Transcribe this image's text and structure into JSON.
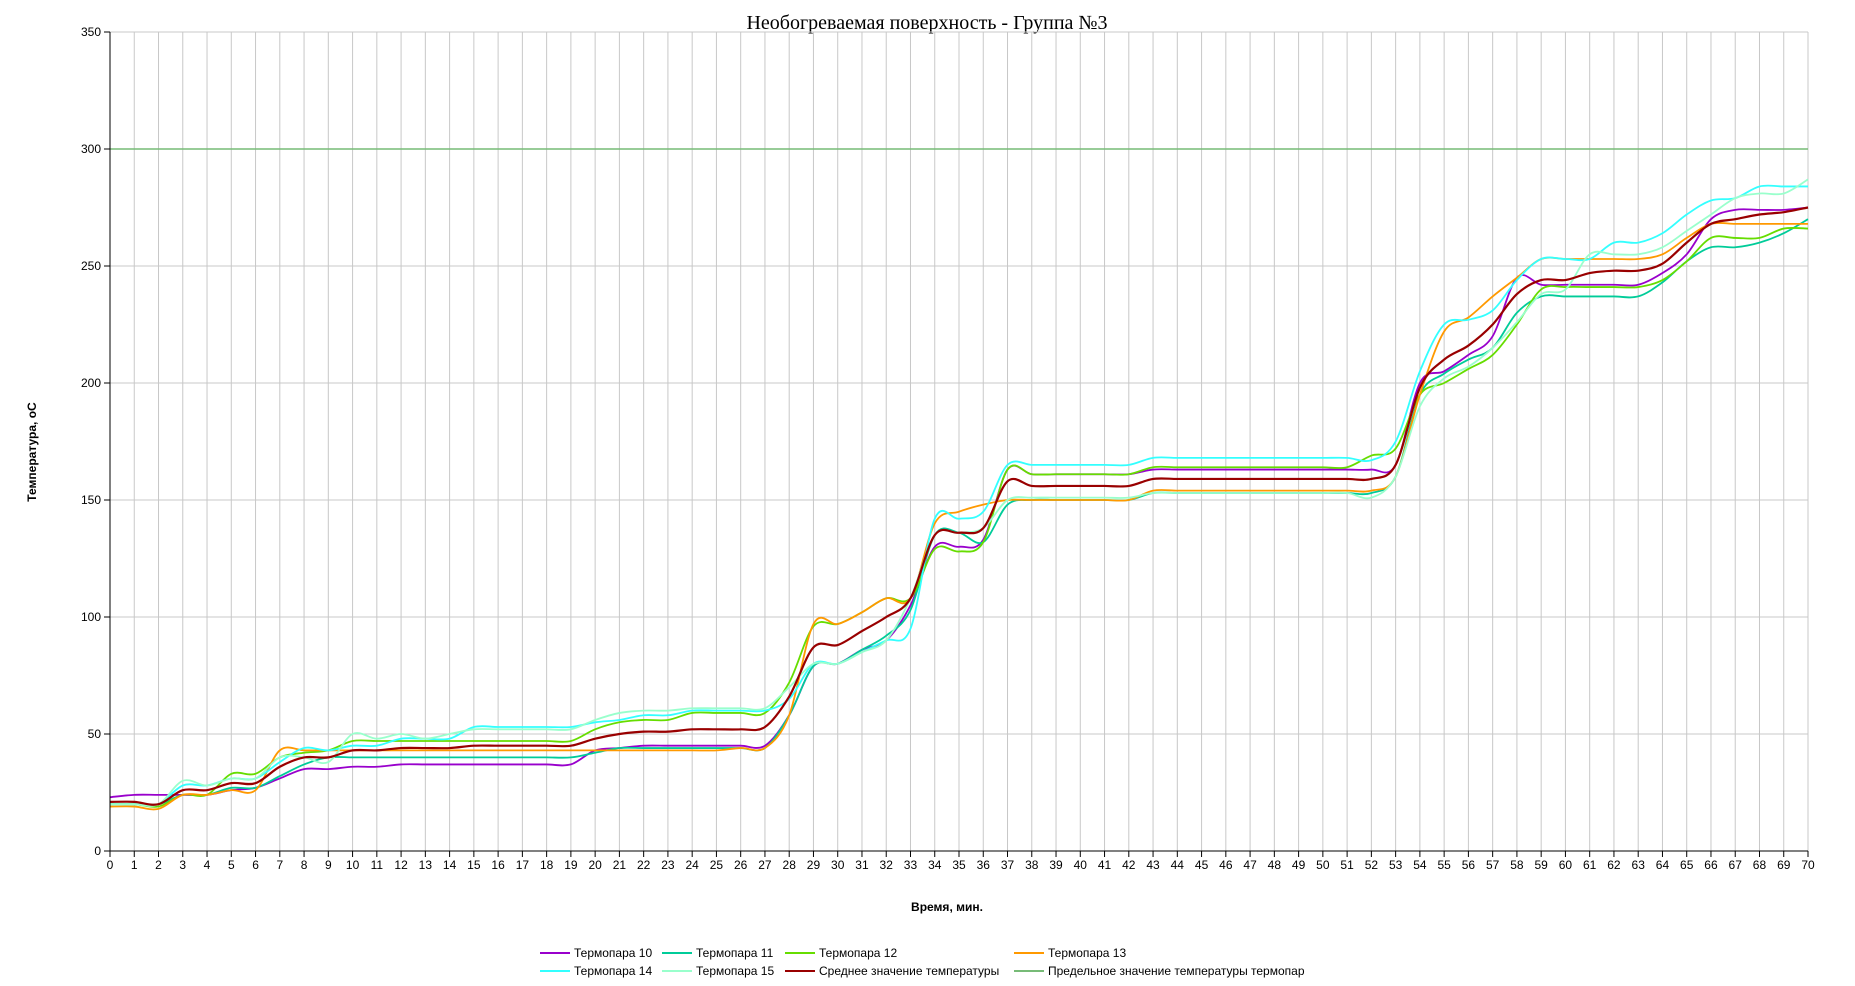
{
  "chart_data": {
    "type": "line",
    "title": "Необогреваемая поверхность - Группа №3",
    "xlabel": "Время, мин.",
    "ylabel": "Температура, оС",
    "xlim": [
      0,
      70
    ],
    "ylim": [
      0,
      350
    ],
    "yticks": [
      0,
      50,
      100,
      150,
      200,
      250,
      300,
      350
    ],
    "x": [
      0,
      1,
      2,
      3,
      4,
      5,
      6,
      7,
      8,
      9,
      10,
      11,
      12,
      13,
      14,
      15,
      16,
      17,
      18,
      19,
      20,
      21,
      22,
      23,
      24,
      25,
      26,
      27,
      28,
      29,
      30,
      31,
      32,
      33,
      34,
      35,
      36,
      37,
      38,
      39,
      40,
      41,
      42,
      43,
      44,
      45,
      46,
      47,
      48,
      49,
      50,
      51,
      52,
      53,
      54,
      55,
      56,
      57,
      58,
      59,
      60,
      61,
      62,
      63,
      64,
      65,
      66,
      67,
      68,
      69,
      70
    ],
    "grid": true,
    "legend_position": "bottom",
    "series": [
      {
        "name": "Термопара 10",
        "color": "#9900cc",
        "values": [
          23,
          24,
          24,
          24,
          24,
          26,
          27,
          31,
          35,
          35,
          36,
          36,
          37,
          37,
          37,
          37,
          37,
          37,
          37,
          37,
          43,
          44,
          45,
          45,
          45,
          45,
          45,
          45,
          58,
          79,
          80,
          86,
          90,
          105,
          130,
          130,
          133,
          163,
          161,
          161,
          161,
          161,
          161,
          163,
          163,
          163,
          163,
          163,
          163,
          163,
          163,
          163,
          163,
          165,
          200,
          205,
          212,
          220,
          245,
          242,
          242,
          242,
          242,
          242,
          247,
          255,
          270,
          274,
          274,
          274,
          275
        ]
      },
      {
        "name": "Термопара 11",
        "color": "#00cc99",
        "values": [
          20,
          20,
          20,
          24,
          24,
          27,
          27,
          32,
          37,
          40,
          40,
          40,
          40,
          40,
          40,
          40,
          40,
          40,
          40,
          40,
          42,
          44,
          44,
          44,
          44,
          44,
          44,
          44,
          58,
          79,
          80,
          86,
          92,
          103,
          135,
          136,
          132,
          148,
          150,
          150,
          150,
          150,
          150,
          153,
          153,
          153,
          153,
          153,
          153,
          153,
          153,
          153,
          153,
          160,
          195,
          204,
          210,
          215,
          230,
          237,
          237,
          237,
          237,
          237,
          243,
          252,
          258,
          258,
          260,
          264,
          270
        ]
      },
      {
        "name": "Термопара 12",
        "color": "#66dd00",
        "values": [
          20,
          20,
          19,
          24,
          24,
          33,
          33,
          40,
          42,
          43,
          47,
          47,
          47,
          47,
          47,
          47,
          47,
          47,
          47,
          47,
          52,
          55,
          56,
          56,
          59,
          59,
          59,
          59,
          72,
          96,
          97,
          102,
          108,
          108,
          129,
          128,
          132,
          163,
          161,
          161,
          161,
          161,
          161,
          164,
          164,
          164,
          164,
          164,
          164,
          164,
          164,
          164,
          169,
          172,
          195,
          200,
          206,
          212,
          225,
          240,
          241,
          241,
          241,
          241,
          244,
          252,
          262,
          262,
          262,
          266,
          266
        ]
      },
      {
        "name": "Термопара 13",
        "color": "#ff9900",
        "values": [
          19,
          19,
          18,
          24,
          24,
          26,
          26,
          43,
          43,
          43,
          43,
          43,
          43,
          43,
          43,
          43,
          43,
          43,
          43,
          43,
          43,
          43,
          43,
          43,
          43,
          43,
          44,
          44,
          58,
          97,
          97,
          102,
          108,
          108,
          140,
          145,
          148,
          150,
          150,
          150,
          150,
          150,
          150,
          154,
          154,
          154,
          154,
          154,
          154,
          154,
          154,
          154,
          154,
          160,
          195,
          222,
          228,
          237,
          245,
          253,
          253,
          253,
          253,
          253,
          255,
          262,
          268,
          268,
          268,
          268,
          268
        ]
      },
      {
        "name": "Термопара 14",
        "color": "#33ffff",
        "values": [
          20,
          20,
          20,
          28,
          28,
          31,
          31,
          38,
          44,
          43,
          45,
          45,
          48,
          48,
          48,
          53,
          53,
          53,
          53,
          53,
          55,
          56,
          58,
          58,
          60,
          60,
          60,
          60,
          65,
          80,
          80,
          85,
          90,
          95,
          142,
          142,
          145,
          165,
          165,
          165,
          165,
          165,
          165,
          168,
          168,
          168,
          168,
          168,
          168,
          168,
          168,
          168,
          167,
          175,
          205,
          225,
          227,
          231,
          244,
          253,
          253,
          253,
          260,
          260,
          264,
          272,
          278,
          279,
          284,
          284,
          284
        ]
      },
      {
        "name": "Термопара 15",
        "color": "#99ffcc",
        "values": [
          20,
          20,
          20,
          30,
          28,
          31,
          31,
          40,
          40,
          38,
          50,
          48,
          50,
          48,
          50,
          52,
          52,
          52,
          52,
          52,
          56,
          59,
          60,
          60,
          61,
          61,
          61,
          61,
          70,
          80,
          80,
          85,
          90,
          108,
          135,
          136,
          138,
          150,
          151,
          151,
          151,
          151,
          151,
          153,
          153,
          153,
          153,
          153,
          153,
          153,
          153,
          153,
          151,
          160,
          190,
          202,
          207,
          215,
          226,
          238,
          240,
          255,
          255,
          255,
          258,
          265,
          272,
          279,
          281,
          281,
          287
        ]
      },
      {
        "name": "Среднее значение температуры",
        "color": "#990000",
        "values": [
          21,
          21,
          20,
          26,
          26,
          29,
          29,
          36,
          40,
          40,
          43,
          43,
          44,
          44,
          44,
          45,
          45,
          45,
          45,
          45,
          48,
          50,
          51,
          51,
          52,
          52,
          52,
          53,
          66,
          87,
          88,
          94,
          100,
          108,
          135,
          136,
          138,
          158,
          156,
          156,
          156,
          156,
          156,
          159,
          159,
          159,
          159,
          159,
          159,
          159,
          159,
          159,
          159,
          165,
          198,
          210,
          216,
          225,
          238,
          244,
          244,
          247,
          248,
          248,
          251,
          260,
          268,
          270,
          272,
          273,
          275
        ]
      },
      {
        "name": "Предельное значение температуры термопар",
        "color": "#77bb77",
        "values": [
          300,
          300,
          300,
          300,
          300,
          300,
          300,
          300,
          300,
          300,
          300,
          300,
          300,
          300,
          300,
          300,
          300,
          300,
          300,
          300,
          300,
          300,
          300,
          300,
          300,
          300,
          300,
          300,
          300,
          300,
          300,
          300,
          300,
          300,
          300,
          300,
          300,
          300,
          300,
          300,
          300,
          300,
          300,
          300,
          300,
          300,
          300,
          300,
          300,
          300,
          300,
          300,
          300,
          300,
          300,
          300,
          300,
          300,
          300,
          300,
          300,
          300,
          300,
          300,
          300,
          300,
          300,
          300,
          300,
          300,
          300
        ]
      }
    ]
  }
}
